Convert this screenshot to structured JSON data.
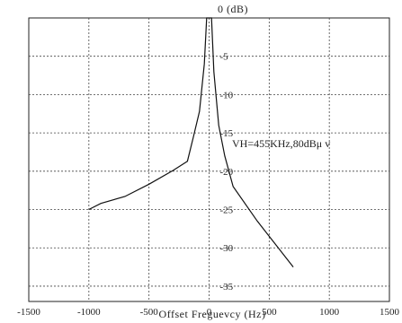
{
  "chart_data": {
    "type": "line",
    "title": "0  (dB)",
    "xlabel": "Offset  Freguevcy  (Hz)",
    "ylabel": "",
    "xlim": [
      -1500,
      1500
    ],
    "ylim": [
      -37,
      0
    ],
    "grid": true,
    "x_ticks": [
      -1500,
      -1000,
      -500,
      0,
      500,
      1000,
      1500
    ],
    "x_tick_labels": [
      "-1500",
      "-1000",
      "-500",
      "0",
      "500",
      "1000",
      "1500"
    ],
    "y_ticks": [
      -5,
      -10,
      -15,
      -20,
      -25,
      -30,
      -35
    ],
    "y_tick_labels": [
      "-5",
      "-10",
      "-15",
      "-20",
      "-25",
      "-30",
      "-35"
    ],
    "annotation": "VH=455KHz,80dBμ v",
    "series": [
      {
        "name": "",
        "x": [
          -1000,
          -900,
          -700,
          -500,
          -300,
          -180,
          -130,
          -80,
          -40,
          -20,
          0,
          20,
          40,
          80,
          130,
          200,
          400,
          700
        ],
        "y": [
          -25,
          -24.2,
          -23.3,
          -21.7,
          -19.9,
          -18.7,
          -15.5,
          -12.2,
          -6,
          0,
          0,
          0,
          -7,
          -14,
          -18,
          -22,
          -26.5,
          -32.5
        ]
      }
    ]
  }
}
